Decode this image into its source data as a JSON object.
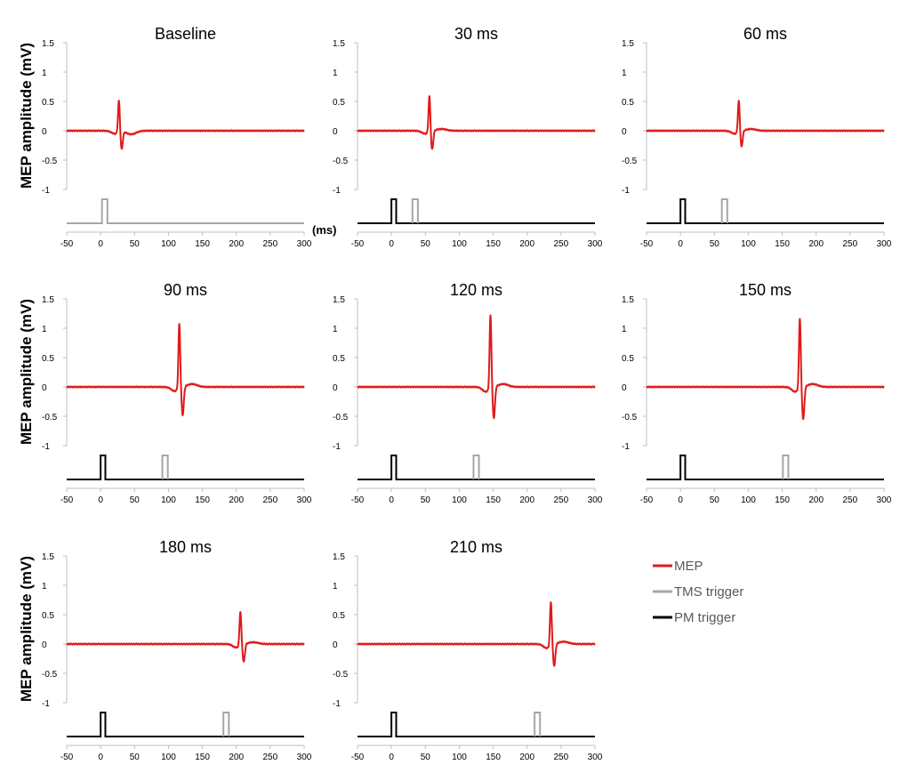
{
  "figure": {
    "ylabel": "MEP amplitude (mV)",
    "x_unit_label": "(ms)",
    "legend": [
      {
        "label": "MEP",
        "color": "#e01a1a"
      },
      {
        "label": "TMS trigger",
        "color": "#a6a6a6"
      },
      {
        "label": "PM trigger",
        "color": "#000000"
      }
    ]
  },
  "chart_data": [
    {
      "type": "line",
      "title": "Baseline",
      "xlim": [
        -50,
        300
      ],
      "ylim": [
        -1,
        1.5
      ],
      "xticks": [
        -50,
        0,
        50,
        100,
        150,
        200,
        250,
        300
      ],
      "yticks": [
        "1.5",
        "1",
        "0.5",
        "0",
        "-0.5",
        "-1"
      ],
      "mep": {
        "onset": 24,
        "pre_dip": -0.05,
        "peak_time": 27,
        "peak": 0.55,
        "trough_time": 31,
        "trough": -0.3,
        "rebound": -0.06
      },
      "tms_pulse": [
        2,
        10
      ],
      "pm_pulse": null
    },
    {
      "type": "line",
      "title": "30 ms",
      "xlim": [
        -50,
        300
      ],
      "ylim": [
        -1,
        1.5
      ],
      "xticks": [
        -50,
        0,
        50,
        100,
        150,
        200,
        250,
        300
      ],
      "yticks": [
        "1.5",
        "1",
        "0.5",
        "0",
        "-0.5",
        "-1"
      ],
      "mep": {
        "onset": 53,
        "pre_dip": -0.05,
        "peak_time": 56,
        "peak": 0.62,
        "trough_time": 60,
        "trough": -0.32,
        "rebound": 0.03
      },
      "tms_pulse": [
        31,
        39
      ],
      "pm_pulse": [
        0,
        7
      ]
    },
    {
      "type": "line",
      "title": "60 ms",
      "xlim": [
        -50,
        300
      ],
      "ylim": [
        -1,
        1.5
      ],
      "xticks": [
        -50,
        0,
        50,
        100,
        150,
        200,
        250,
        300
      ],
      "yticks": [
        "1.5",
        "1",
        "0.5",
        "0",
        "-0.5",
        "-1"
      ],
      "mep": {
        "onset": 83,
        "pre_dip": -0.05,
        "peak_time": 86,
        "peak": 0.54,
        "trough_time": 90,
        "trough": -0.27,
        "rebound": 0.03
      },
      "tms_pulse": [
        61,
        69
      ],
      "pm_pulse": [
        0,
        7
      ]
    },
    {
      "type": "line",
      "title": "90 ms",
      "xlim": [
        -50,
        300
      ],
      "ylim": [
        -1,
        1.5
      ],
      "xticks": [
        -50,
        0,
        50,
        100,
        150,
        200,
        250,
        300
      ],
      "yticks": [
        "1.5",
        "1",
        "0.5",
        "0",
        "-0.5",
        "-1"
      ],
      "mep": {
        "onset": 112,
        "pre_dip": -0.07,
        "peak_time": 116,
        "peak": 1.1,
        "trough_time": 121,
        "trough": -0.48,
        "rebound": 0.05
      },
      "tms_pulse": [
        91,
        99
      ],
      "pm_pulse": [
        0,
        7
      ]
    },
    {
      "type": "line",
      "title": "120 ms",
      "xlim": [
        -50,
        300
      ],
      "ylim": [
        -1,
        1.5
      ],
      "xticks": [
        -50,
        0,
        50,
        100,
        150,
        200,
        250,
        300
      ],
      "yticks": [
        "1.5",
        "1",
        "0.5",
        "0",
        "-0.5",
        "-1"
      ],
      "mep": {
        "onset": 142,
        "pre_dip": -0.08,
        "peak_time": 146,
        "peak": 1.25,
        "trough_time": 151,
        "trough": -0.53,
        "rebound": 0.05
      },
      "tms_pulse": [
        121,
        129
      ],
      "pm_pulse": [
        0,
        7
      ]
    },
    {
      "type": "line",
      "title": "150 ms",
      "xlim": [
        -50,
        300
      ],
      "ylim": [
        -1,
        1.5
      ],
      "xticks": [
        -50,
        0,
        50,
        100,
        150,
        200,
        250,
        300
      ],
      "yticks": [
        "1.5",
        "1",
        "0.5",
        "0",
        "-0.5",
        "-1"
      ],
      "mep": {
        "onset": 172,
        "pre_dip": -0.08,
        "peak_time": 176,
        "peak": 1.2,
        "trough_time": 181,
        "trough": -0.55,
        "rebound": 0.05
      },
      "tms_pulse": [
        151,
        159
      ],
      "pm_pulse": [
        0,
        7
      ]
    },
    {
      "type": "line",
      "title": "180 ms",
      "xlim": [
        -50,
        300
      ],
      "ylim": [
        -1,
        1.5
      ],
      "xticks": [
        -50,
        0,
        50,
        100,
        150,
        200,
        250,
        300
      ],
      "yticks": [
        "1.5",
        "1",
        "0.5",
        "0",
        "-0.5",
        "-1"
      ],
      "mep": {
        "onset": 203,
        "pre_dip": -0.06,
        "peak_time": 206,
        "peak": 0.58,
        "trough_time": 211,
        "trough": -0.3,
        "rebound": 0.03
      },
      "tms_pulse": [
        181,
        189
      ],
      "pm_pulse": [
        0,
        7
      ]
    },
    {
      "type": "line",
      "title": "210 ms",
      "xlim": [
        -50,
        300
      ],
      "ylim": [
        -1,
        1.5
      ],
      "xticks": [
        -50,
        0,
        50,
        100,
        150,
        200,
        250,
        300
      ],
      "yticks": [
        "1.5",
        "1",
        "0.5",
        "0",
        "-0.5",
        "-1"
      ],
      "mep": {
        "onset": 232,
        "pre_dip": -0.07,
        "peak_time": 235,
        "peak": 0.75,
        "trough_time": 240,
        "trough": -0.37,
        "rebound": 0.04
      },
      "tms_pulse": [
        211,
        219
      ],
      "pm_pulse": [
        0,
        7
      ]
    }
  ]
}
